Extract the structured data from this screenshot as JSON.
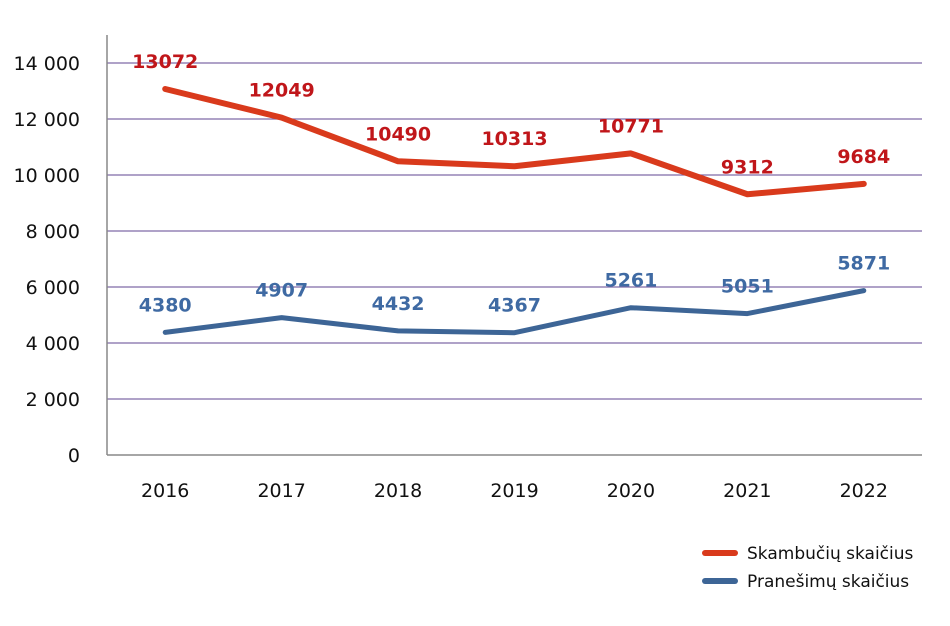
{
  "chart_data": {
    "type": "line",
    "categories": [
      "2016",
      "2017",
      "2018",
      "2019",
      "2020",
      "2021",
      "2022"
    ],
    "series": [
      {
        "name": "Skambučių skaičius",
        "color": "#d93a1c",
        "label_color": "#c0161a",
        "values": [
          13072,
          12049,
          10490,
          10313,
          10771,
          9312,
          9684
        ]
      },
      {
        "name": "Pranešimų skaičius",
        "color": "#3d6596",
        "label_color": "#3f6aa3",
        "values": [
          4380,
          4907,
          4432,
          4367,
          5261,
          5051,
          5871
        ]
      }
    ],
    "ylim": [
      0,
      14000
    ],
    "yticks": [
      0,
      2000,
      4000,
      6000,
      8000,
      10000,
      12000,
      14000
    ],
    "ytick_labels": [
      "0",
      "2 000",
      "4 000",
      "6 000",
      "8 000",
      "10 000",
      "12 000",
      "14 000"
    ],
    "grid": true,
    "grid_color": "#7f6aa8",
    "legend": "bottom-right",
    "title": "",
    "xlabel": "",
    "ylabel": ""
  }
}
